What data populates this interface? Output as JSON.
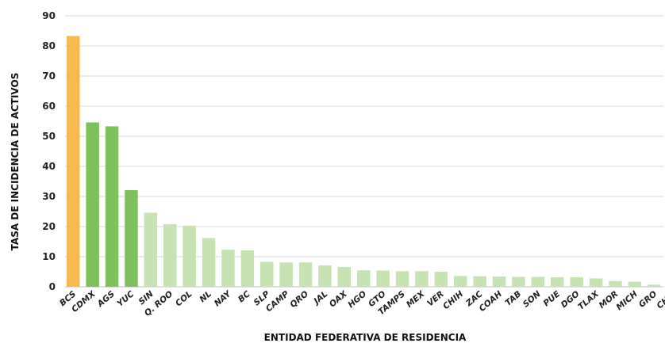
{
  "chart_data": {
    "type": "bar",
    "xlabel": "ENTIDAD FEDERATIVA DE RESIDENCIA",
    "ylabel": "TASA DE INCIDENCIA DE ACTIVOS",
    "ylim": [
      0,
      90
    ],
    "yticks": [
      0,
      10,
      20,
      30,
      40,
      50,
      60,
      70,
      80,
      90
    ],
    "grid": true,
    "categories": [
      "BCS",
      "CDMX",
      "AGS",
      "YUC",
      "SIN",
      "Q. ROO",
      "COL",
      "NL",
      "NAY",
      "BC",
      "SLP",
      "CAMP",
      "QRO",
      "JAL",
      "OAX",
      "HGO",
      "GTO",
      "TAMPS",
      "MEX",
      "VER",
      "CHIH",
      "ZAC",
      "COAH",
      "TAB",
      "SON",
      "PUE",
      "DGO",
      "TLAX",
      "MOR",
      "MICH",
      "GRO",
      "CHIS"
    ],
    "values": [
      83.3,
      54.6,
      53.3,
      32.1,
      24.6,
      20.8,
      20.3,
      16.2,
      12.3,
      12.1,
      8.3,
      8.1,
      8.1,
      7.1,
      6.6,
      5.5,
      5.4,
      5.2,
      5.2,
      5.0,
      3.6,
      3.5,
      3.4,
      3.3,
      3.3,
      3.2,
      3.2,
      2.8,
      1.9,
      1.7,
      0.7,
      0.0
    ],
    "colors": [
      "#f5b94f",
      "#7cc15b",
      "#7cc15b",
      "#7cc15b",
      "#c8e3b2",
      "#c8e3b2",
      "#c8e3b2",
      "#c8e3b2",
      "#c8e3b2",
      "#c8e3b2",
      "#c8e3b2",
      "#c8e3b2",
      "#c8e3b2",
      "#c8e3b2",
      "#c8e3b2",
      "#c8e3b2",
      "#c8e3b2",
      "#c8e3b2",
      "#c8e3b2",
      "#c8e3b2",
      "#c8e3b2",
      "#c8e3b2",
      "#c8e3b2",
      "#c8e3b2",
      "#c8e3b2",
      "#c8e3b2",
      "#c8e3b2",
      "#c8e3b2",
      "#c8e3b2",
      "#c8e3b2",
      "#c8e3b2",
      "#c8e3b2"
    ]
  }
}
